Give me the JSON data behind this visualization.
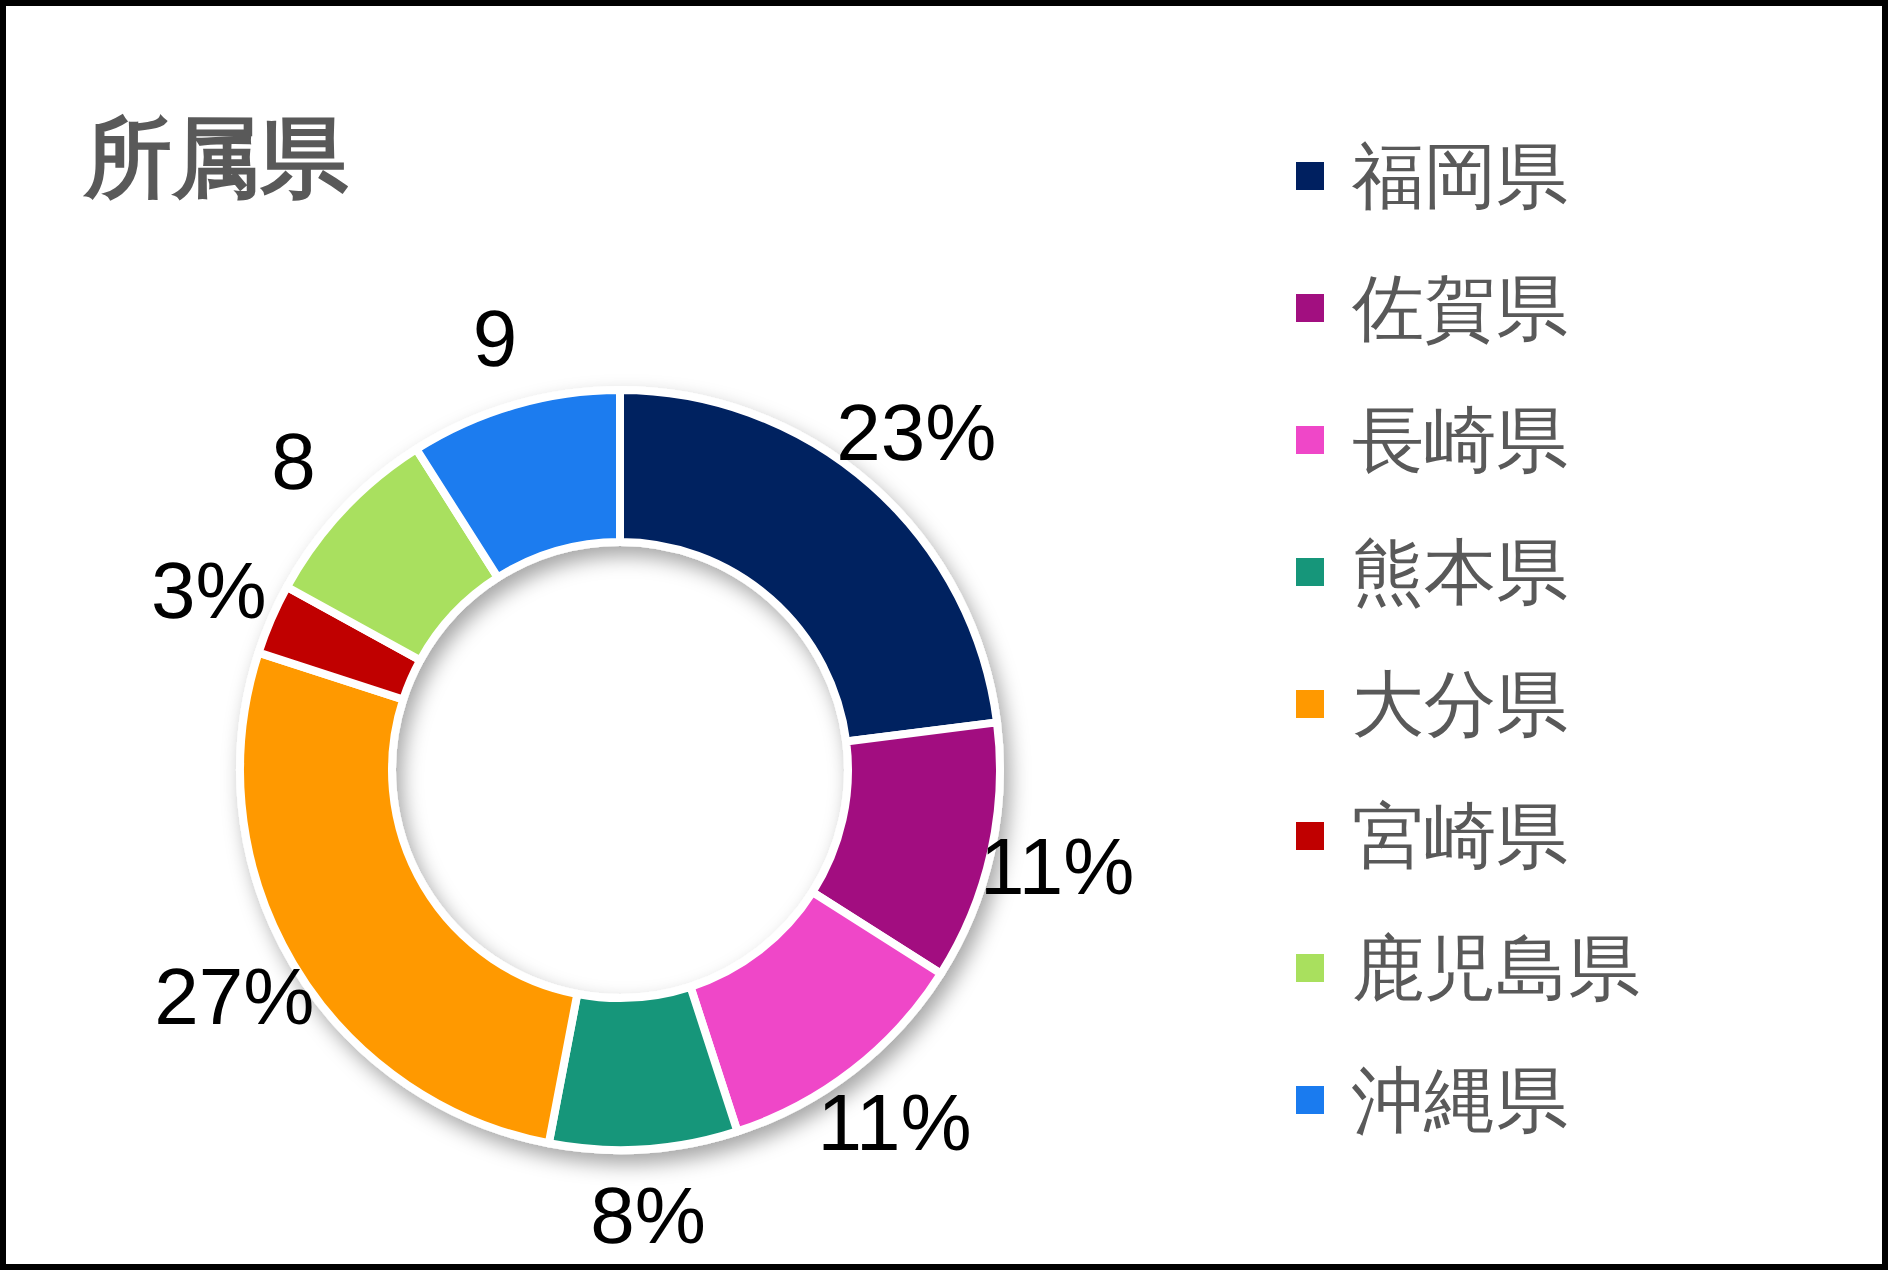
{
  "chart_data": {
    "type": "donut",
    "title": "所属県",
    "categories": [
      "福岡県",
      "佐賀県",
      "長崎県",
      "熊本県",
      "大分県",
      "宮崎県",
      "鹿児島県",
      "沖縄県"
    ],
    "values": [
      23,
      11,
      11,
      8,
      27,
      3,
      8,
      9
    ],
    "colors": [
      "#002060",
      "#a20f80",
      "#ef47c8",
      "#16967a",
      "#ff9900",
      "#c00000",
      "#a9e05e",
      "#1a7bef"
    ],
    "value_labels": [
      "23%",
      "11%",
      "11%",
      "8%",
      "27%",
      "3%",
      "8",
      "9"
    ],
    "legend": "right"
  }
}
